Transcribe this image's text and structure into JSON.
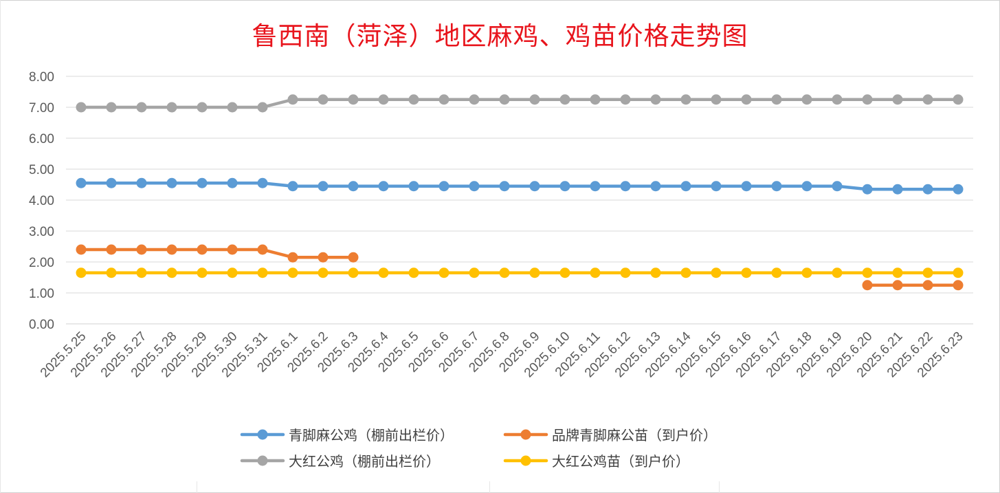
{
  "chart_data": {
    "type": "line",
    "title": "鲁西南（菏泽）地区麻鸡、鸡苗价格走势图",
    "xlabel": "",
    "ylabel": "",
    "ylim": [
      0,
      8
    ],
    "yticks": [
      "0.00",
      "1.00",
      "2.00",
      "3.00",
      "4.00",
      "5.00",
      "6.00",
      "7.00",
      "8.00"
    ],
    "grid": true,
    "legend_position": "bottom",
    "categories": [
      "2025.5.25",
      "2025.5.26",
      "2025.5.27",
      "2025.5.28",
      "2025.5.29",
      "2025.5.30",
      "2025.5.31",
      "2025.6.1",
      "2025.6.2",
      "2025.6.3",
      "2025.6.4",
      "2025.6.5",
      "2025.6.6",
      "2025.6.7",
      "2025.6.8",
      "2025.6.9",
      "2025.6.10",
      "2025.6.11",
      "2025.6.12",
      "2025.6.13",
      "2025.6.14",
      "2025.6.15",
      "2025.6.16",
      "2025.6.17",
      "2025.6.18",
      "2025.6.19",
      "2025.6.20",
      "2025.6.21",
      "2025.6.22",
      "2025.6.23"
    ],
    "series": [
      {
        "name": "青脚麻公鸡（棚前出栏价）",
        "color": "#5b9bd5",
        "values": [
          4.55,
          4.55,
          4.55,
          4.55,
          4.55,
          4.55,
          4.55,
          4.45,
          4.45,
          4.45,
          4.45,
          4.45,
          4.45,
          4.45,
          4.45,
          4.45,
          4.45,
          4.45,
          4.45,
          4.45,
          4.45,
          4.45,
          4.45,
          4.45,
          4.45,
          4.45,
          4.35,
          4.35,
          4.35,
          4.35
        ]
      },
      {
        "name": "品牌青脚麻公苗（到户价）",
        "color": "#ed7d31",
        "values": [
          2.4,
          2.4,
          2.4,
          2.4,
          2.4,
          2.4,
          2.4,
          2.15,
          2.15,
          2.15,
          null,
          null,
          null,
          null,
          null,
          null,
          null,
          null,
          null,
          null,
          null,
          null,
          null,
          null,
          null,
          null,
          1.25,
          1.25,
          1.25,
          1.25
        ]
      },
      {
        "name": "大红公鸡（棚前出栏价）",
        "color": "#a5a5a5",
        "values": [
          7.0,
          7.0,
          7.0,
          7.0,
          7.0,
          7.0,
          7.0,
          7.25,
          7.25,
          7.25,
          7.25,
          7.25,
          7.25,
          7.25,
          7.25,
          7.25,
          7.25,
          7.25,
          7.25,
          7.25,
          7.25,
          7.25,
          7.25,
          7.25,
          7.25,
          7.25,
          7.25,
          7.25,
          7.25,
          7.25
        ]
      },
      {
        "name": "大红公鸡苗（到户价）",
        "color": "#ffc000",
        "values": [
          1.65,
          1.65,
          1.65,
          1.65,
          1.65,
          1.65,
          1.65,
          1.65,
          1.65,
          1.65,
          1.65,
          1.65,
          1.65,
          1.65,
          1.65,
          1.65,
          1.65,
          1.65,
          1.65,
          1.65,
          1.65,
          1.65,
          1.65,
          1.65,
          1.65,
          1.65,
          1.65,
          1.65,
          1.65,
          1.65
        ]
      }
    ],
    "legend_order": [
      0,
      1,
      2,
      3
    ]
  }
}
